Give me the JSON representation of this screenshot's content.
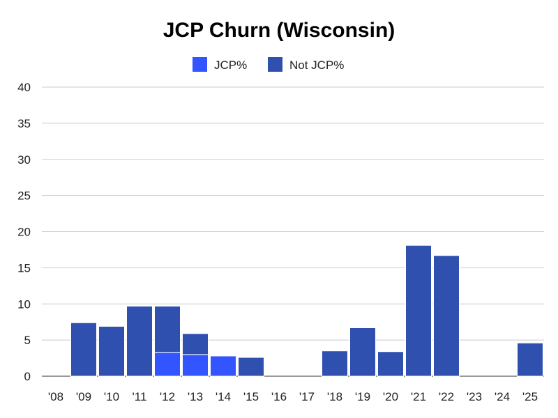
{
  "chart_data": {
    "type": "bar",
    "stacked": true,
    "title": "JCP Churn (Wisconsin)",
    "xlabel": "",
    "ylabel": "",
    "categories": [
      "'08",
      "'09",
      "'10",
      "'11",
      "'12",
      "'13",
      "'14",
      "'15",
      "'16",
      "'17",
      "'18",
      "'19",
      "'20",
      "'21",
      "'22",
      "'23",
      "'24",
      "'25"
    ],
    "series": [
      {
        "name": "JCP%",
        "color": "#3355ff",
        "values": [
          0,
          0,
          0,
          0,
          3.3,
          3.0,
          2.8,
          0,
          0,
          0,
          0,
          0,
          0,
          0,
          0,
          0,
          0,
          0
        ]
      },
      {
        "name": "Not JCP%",
        "color": "#3050b0",
        "values": [
          0,
          7.4,
          6.9,
          9.7,
          6.4,
          2.9,
          0,
          2.6,
          0,
          0,
          3.5,
          6.7,
          3.4,
          18.1,
          16.7,
          0,
          0,
          4.6
        ]
      }
    ],
    "ylim": [
      0,
      40
    ],
    "yticks": [
      0,
      5,
      10,
      15,
      20,
      25,
      30,
      35,
      40
    ],
    "grid": true,
    "legend_position": "top-center"
  }
}
